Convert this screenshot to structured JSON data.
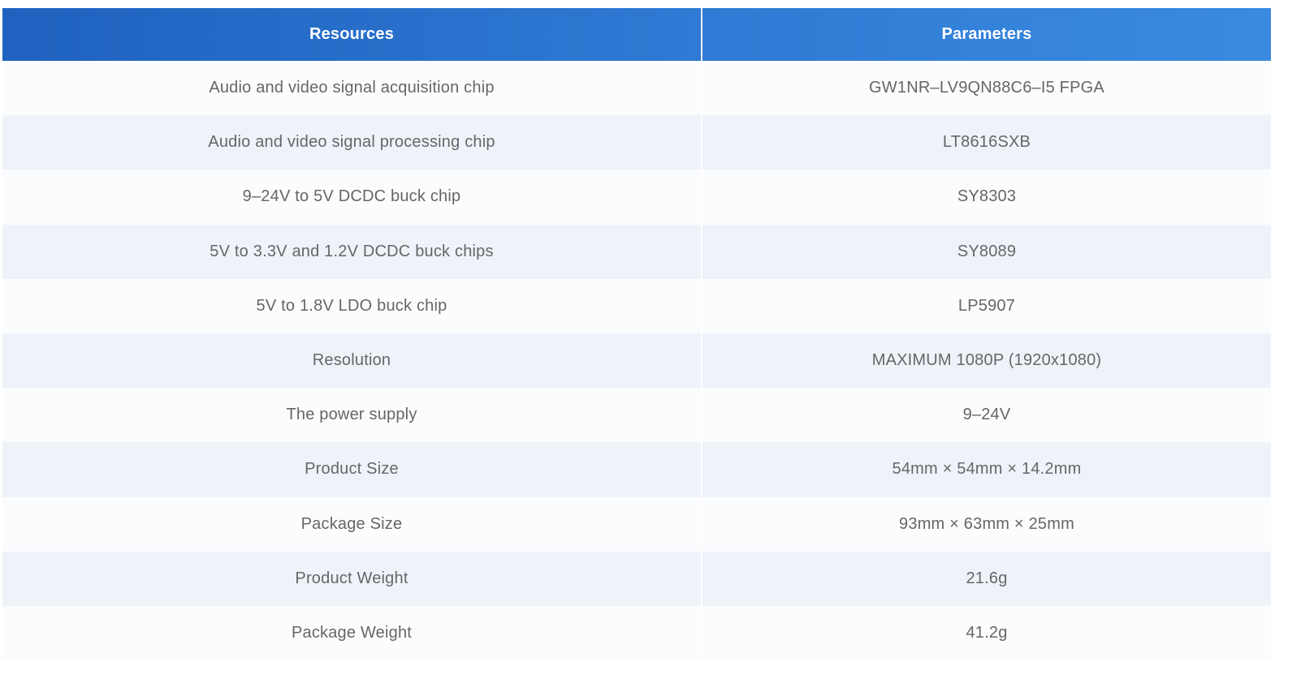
{
  "table": {
    "header": [
      "Resources",
      "Parameters"
    ],
    "rows": [
      [
        "Audio and video signal acquisition chip",
        "GW1NR–LV9QN88C6–I5 FPGA"
      ],
      [
        "Audio and video signal processing chip",
        "LT8616SXB"
      ],
      [
        "9–24V to 5V DCDC buck chip",
        "SY8303"
      ],
      [
        "5V to 3.3V and 1.2V DCDC buck chips",
        "SY8089"
      ],
      [
        "5V to 1.8V LDO buck chip",
        "LP5907"
      ],
      [
        "Resolution",
        "MAXIMUM 1080P (1920x1080)"
      ],
      [
        "The power supply",
        "9–24V"
      ],
      [
        "Product Size",
        "54mm × 54mm × 14.2mm"
      ],
      [
        "Package Size",
        "93mm × 63mm × 25mm"
      ],
      [
        "Product Weight",
        "21.6g"
      ],
      [
        "Package Weight",
        "41.2g"
      ]
    ]
  }
}
